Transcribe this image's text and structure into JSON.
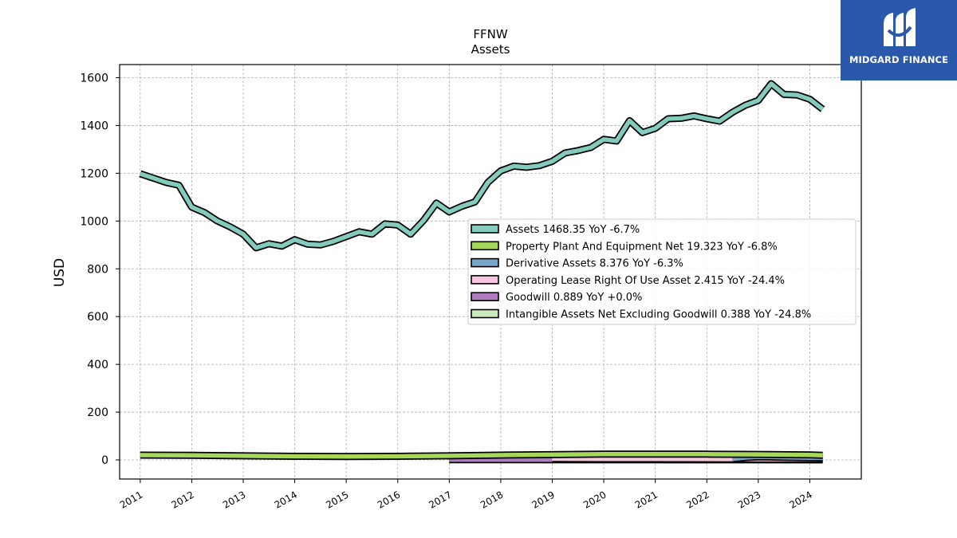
{
  "logo": {
    "text": "MIDGARD FINANCE",
    "icon": "midgard-m-logo-icon",
    "background": "#2a58ab"
  },
  "chart_data": {
    "type": "line",
    "title": "FFNW",
    "subtitle": "Assets",
    "ylabel": "USD",
    "xlabel": "",
    "xlim": [
      2010.6,
      2025.0
    ],
    "ylim": [
      -80,
      1655
    ],
    "yticks": [
      0,
      200,
      400,
      600,
      800,
      1000,
      1200,
      1400,
      1600
    ],
    "xticks": [
      "2011",
      "2012",
      "2013",
      "2014",
      "2015",
      "2016",
      "2017",
      "2018",
      "2019",
      "2020",
      "2021",
      "2022",
      "2023",
      "2024"
    ],
    "grid": true,
    "legend_position": "center-right",
    "series": [
      {
        "name": "Assets",
        "legend": "Assets  1468.35 YoY -6.7%",
        "color": "#82cbbd",
        "x": [
          2011.0,
          2011.25,
          2011.5,
          2011.75,
          2012.0,
          2012.25,
          2012.5,
          2012.75,
          2013.0,
          2013.25,
          2013.5,
          2013.75,
          2014.0,
          2014.25,
          2014.5,
          2014.75,
          2015.0,
          2015.25,
          2015.5,
          2015.75,
          2016.0,
          2016.25,
          2016.5,
          2016.75,
          2017.0,
          2017.25,
          2017.5,
          2017.75,
          2018.0,
          2018.25,
          2018.5,
          2018.75,
          2019.0,
          2019.25,
          2019.5,
          2019.75,
          2020.0,
          2020.25,
          2020.5,
          2020.75,
          2021.0,
          2021.25,
          2021.5,
          2021.75,
          2022.0,
          2022.25,
          2022.5,
          2022.75,
          2023.0,
          2023.25,
          2023.5,
          2023.75,
          2024.0,
          2024.25
        ],
        "values": [
          1198,
          1180,
          1162,
          1150,
          1058,
          1035,
          1000,
          975,
          945,
          888,
          905,
          895,
          922,
          903,
          900,
          915,
          935,
          955,
          945,
          988,
          983,
          945,
          1002,
          1075,
          1038,
          1062,
          1080,
          1162,
          1210,
          1230,
          1225,
          1232,
          1250,
          1285,
          1295,
          1308,
          1342,
          1335,
          1420,
          1370,
          1388,
          1428,
          1430,
          1440,
          1428,
          1418,
          1455,
          1485,
          1505,
          1575,
          1530,
          1528,
          1510,
          1468
        ]
      },
      {
        "name": "Property Plant And Equipment Net",
        "legend": "Property Plant And Equipment Net  19.323 YoY -6.8%",
        "color": "#a6d75b",
        "x": [
          2011.0,
          2012.0,
          2013.0,
          2014.0,
          2015.0,
          2016.0,
          2017.0,
          2018.0,
          2019.0,
          2020.0,
          2021.0,
          2022.0,
          2023.0,
          2024.0,
          2024.25
        ],
        "values": [
          20,
          19,
          17,
          15,
          14,
          15,
          17,
          20,
          22,
          24,
          24,
          24,
          23,
          21,
          19.3
        ]
      },
      {
        "name": "Derivative Assets",
        "legend": "Derivative Assets  8.376 YoY -6.3%",
        "color": "#7aa6c9",
        "x": [
          2022.5,
          2022.75,
          2023.0,
          2023.25,
          2023.5,
          2023.75,
          2024.0,
          2024.25
        ],
        "values": [
          4,
          10,
          13,
          12,
          11,
          10,
          9,
          8.4
        ]
      },
      {
        "name": "Operating Lease Right Of Use Asset",
        "legend": "Operating Lease Right Of Use Asset  2.415 YoY -24.4%",
        "color": "#f6c7de",
        "x": [
          2019.0,
          2020.0,
          2021.0,
          2022.0,
          2023.0,
          2024.0,
          2024.25
        ],
        "values": [
          5,
          4.5,
          4,
          3.6,
          3.2,
          2.6,
          2.4
        ]
      },
      {
        "name": "Goodwill",
        "legend": "Goodwill  0.889 YoY +0.0%",
        "color": "#b07cc0",
        "x": [
          2017.0,
          2024.25
        ],
        "values": [
          0.889,
          0.889
        ]
      },
      {
        "name": "Intangible Assets Net Excluding Goodwill",
        "legend": "Intangible Assets Net Excluding Goodwill  0.388 YoY -24.8%",
        "color": "#cdeaba",
        "x": [
          2017.0,
          2018.0,
          2019.0,
          2020.0,
          2021.0,
          2022.0,
          2023.0,
          2024.0,
          2024.25
        ],
        "values": [
          1.8,
          1.6,
          1.4,
          1.2,
          1.0,
          0.8,
          0.6,
          0.45,
          0.388
        ]
      }
    ]
  }
}
